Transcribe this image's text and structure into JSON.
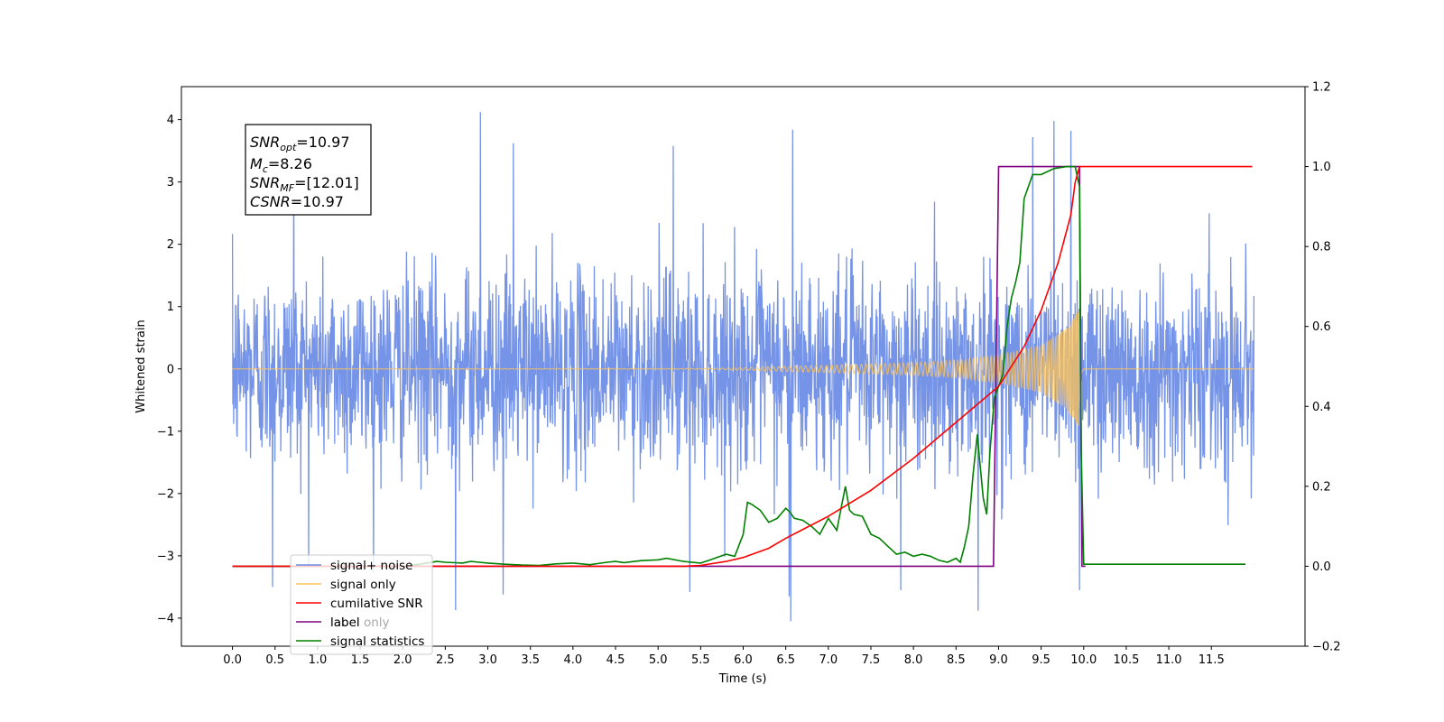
{
  "chart_data": {
    "type": "line",
    "xlabel": "Time (s)",
    "ylabel": "Whitened strain",
    "xlim": [
      -0.6,
      12.6
    ],
    "ylim": [
      -4.45,
      4.53
    ],
    "y2lim": [
      -0.2,
      1.2
    ],
    "grid": false,
    "legend_position": "lower-left",
    "x_ticks": [
      "0.0",
      "0.5",
      "1.0",
      "1.5",
      "2.0",
      "2.5",
      "3.0",
      "3.5",
      "4.0",
      "4.5",
      "5.0",
      "5.5",
      "6.0",
      "6.5",
      "7.0",
      "7.5",
      "8.0",
      "8.5",
      "9.0",
      "9.5",
      "10.0",
      "10.5",
      "11.0",
      "11.5"
    ],
    "y_ticks": [
      "4",
      "3",
      "2",
      "1",
      "0",
      "−1",
      "−2",
      "−3",
      "−4"
    ],
    "y2_ticks": [
      "1.2",
      "1.0",
      "0.8",
      "0.6",
      "0.4",
      "0.2",
      "0.0",
      "−0.2"
    ],
    "annotation": [
      {
        "name": "SNR",
        "sub": "opt",
        "value": "=10.97"
      },
      {
        "name": "M",
        "sub": "c",
        "value": "=8.26"
      },
      {
        "name": "SNR",
        "sub": "MF",
        "value": "=[12.01]"
      },
      {
        "name": "CSNR",
        "sub": "",
        "value": "=10.97"
      }
    ],
    "series": [
      {
        "name": "signal+ noise",
        "color": "#6f8ee6",
        "axis": "left",
        "kind": "gaussian noise with signal, amplitude ~0.75, range about -4.1 to 4.1",
        "x_range": [
          0.0,
          12.0
        ],
        "peaks_high": [
          [
            2.91,
            4.12
          ],
          [
            9.65,
            3.98
          ],
          [
            6.58,
            3.84
          ],
          [
            9.85,
            3.82
          ],
          [
            9.4,
            3.72
          ],
          [
            3.3,
            3.62
          ],
          [
            0.72,
            3.62
          ],
          [
            5.18,
            3.58
          ]
        ],
        "peaks_low": [
          [
            6.56,
            -4.05
          ],
          [
            2.62,
            -3.87
          ],
          [
            8.76,
            -3.88
          ],
          [
            6.54,
            -3.65
          ],
          [
            3.18,
            -3.62
          ],
          [
            5.37,
            -3.58
          ],
          [
            7.85,
            -3.55
          ],
          [
            0.47,
            -3.5
          ],
          [
            9.95,
            -3.55
          ]
        ]
      },
      {
        "name": "signal only",
        "color": "#ffc355",
        "axis": "left",
        "kind": "chirp",
        "t_merger": 9.95,
        "envelope": {
          "t": [
            0,
            5.5,
            6.0,
            7.0,
            8.0,
            8.5,
            9.0,
            9.5,
            9.8,
            9.95,
            10.0,
            12.0
          ],
          "a": [
            0,
            0.005,
            0.02,
            0.06,
            0.1,
            0.14,
            0.22,
            0.38,
            0.65,
            0.95,
            0,
            0
          ]
        }
      },
      {
        "name": "cumilative SNR",
        "color": "#ff0000",
        "axis": "right",
        "x": [
          0,
          5.3,
          5.5,
          5.8,
          6.0,
          6.3,
          6.5,
          7.0,
          7.5,
          8.0,
          8.5,
          9.0,
          9.3,
          9.5,
          9.7,
          9.85,
          9.9,
          9.95,
          10.0,
          11.98
        ],
        "y": [
          0,
          0,
          0.002,
          0.012,
          0.022,
          0.045,
          0.07,
          0.125,
          0.19,
          0.27,
          0.36,
          0.45,
          0.55,
          0.64,
          0.76,
          0.88,
          0.96,
          1.0,
          1.0,
          1.0
        ]
      },
      {
        "name": "label",
        "color": "#800080",
        "axis": "right",
        "x": [
          0,
          8.94,
          9.0,
          9.93,
          9.95,
          9.98,
          10.02
        ],
        "y": [
          0,
          0,
          1.0,
          1.0,
          1.0,
          0.0,
          0.0
        ]
      },
      {
        "name": "label only",
        "color": "#808080",
        "axis": "right",
        "hidden_in_plot": true
      },
      {
        "name": "signal statistics",
        "color": "#008000",
        "axis": "right",
        "x": [
          0,
          1.0,
          1.5,
          2.0,
          2.2,
          2.4,
          2.5,
          2.7,
          2.8,
          2.9,
          3.0,
          3.2,
          3.4,
          3.6,
          3.8,
          4.0,
          4.1,
          4.2,
          4.4,
          4.5,
          4.6,
          4.8,
          5.0,
          5.1,
          5.3,
          5.5,
          5.6,
          5.8,
          5.9,
          6.0,
          6.05,
          6.1,
          6.2,
          6.3,
          6.4,
          6.5,
          6.55,
          6.6,
          6.7,
          6.8,
          6.9,
          7.0,
          7.1,
          7.2,
          7.25,
          7.3,
          7.4,
          7.5,
          7.6,
          7.7,
          7.75,
          7.8,
          7.9,
          8.0,
          8.1,
          8.2,
          8.3,
          8.4,
          8.5,
          8.55,
          8.6,
          8.65,
          8.7,
          8.75,
          8.78,
          8.82,
          8.86,
          8.9,
          8.95,
          9.0,
          9.05,
          9.1,
          9.15,
          9.2,
          9.25,
          9.3,
          9.4,
          9.5,
          9.6,
          9.65,
          9.8,
          9.9,
          9.95,
          9.97,
          10.0,
          11.9
        ],
        "y": [
          0,
          0,
          0,
          0,
          0.005,
          0.012,
          0.01,
          0.008,
          0.012,
          0.01,
          0.008,
          0.005,
          0.003,
          0.002,
          0.006,
          0.008,
          0.006,
          0.004,
          0.01,
          0.012,
          0.009,
          0.014,
          0.016,
          0.02,
          0.012,
          0.008,
          0.015,
          0.03,
          0.025,
          0.08,
          0.16,
          0.155,
          0.14,
          0.11,
          0.12,
          0.145,
          0.135,
          0.12,
          0.115,
          0.1,
          0.08,
          0.12,
          0.09,
          0.2,
          0.14,
          0.13,
          0.125,
          0.08,
          0.07,
          0.05,
          0.04,
          0.03,
          0.035,
          0.025,
          0.03,
          0.025,
          0.015,
          0.01,
          0.02,
          0.01,
          0.05,
          0.1,
          0.23,
          0.33,
          0.26,
          0.17,
          0.13,
          0.29,
          0.42,
          0.45,
          0.48,
          0.6,
          0.67,
          0.71,
          0.76,
          0.92,
          0.98,
          0.98,
          0.99,
          0.995,
          1.0,
          1.0,
          0.95,
          0.3,
          0.005,
          0.005
        ]
      }
    ]
  }
}
